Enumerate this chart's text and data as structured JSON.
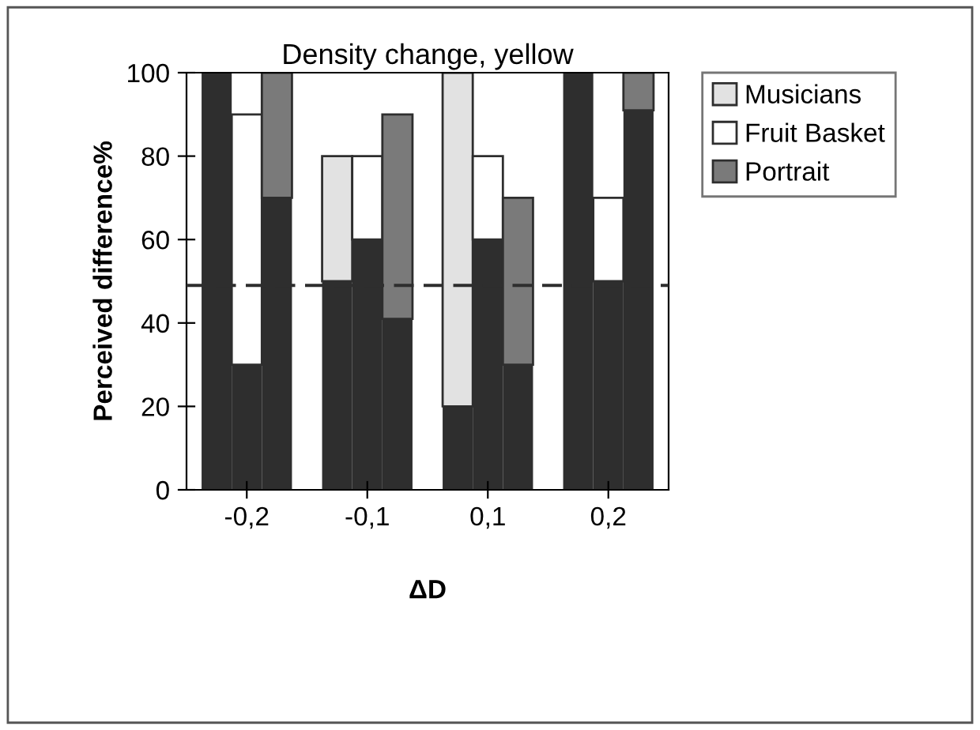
{
  "chart_data": {
    "type": "bar",
    "title": "Density change, yellow",
    "xlabel": "ΔD",
    "ylabel": "Perceived difference%",
    "categories": [
      null,
      "-0,2",
      null,
      null,
      null,
      "-0,1",
      null,
      null,
      null,
      "0,1",
      null,
      null,
      null,
      "0,2",
      null
    ],
    "stacked": true,
    "series": [
      {
        "color": "#2e2e2e",
        "values": [
          100,
          30,
          70,
          null,
          50,
          60,
          41,
          null,
          20,
          60,
          30,
          null,
          100,
          50,
          91
        ]
      },
      {
        "name": "Musicians",
        "color": "#e2e2e2",
        "values": [
          null,
          null,
          null,
          null,
          30,
          null,
          null,
          null,
          80,
          null,
          null,
          null,
          null,
          null,
          null
        ]
      },
      {
        "name": "Fruit Basket",
        "color": "#ffffff",
        "values": [
          null,
          60,
          null,
          null,
          null,
          20,
          null,
          null,
          null,
          20,
          null,
          null,
          null,
          20,
          null
        ]
      },
      {
        "name": "Portrait",
        "color": "#7a7a7a",
        "values": [
          null,
          null,
          30,
          null,
          null,
          null,
          49,
          null,
          null,
          null,
          40,
          null,
          null,
          null,
          9
        ]
      }
    ],
    "ylim": [
      0,
      100
    ],
    "yticks": [
      0,
      20,
      40,
      60,
      80,
      100
    ],
    "ref_lines": [
      {
        "axis": "y",
        "value": 49,
        "line_style": "dashed",
        "color": "#2e2e2e"
      }
    ],
    "legend": "right",
    "grid": false
  }
}
